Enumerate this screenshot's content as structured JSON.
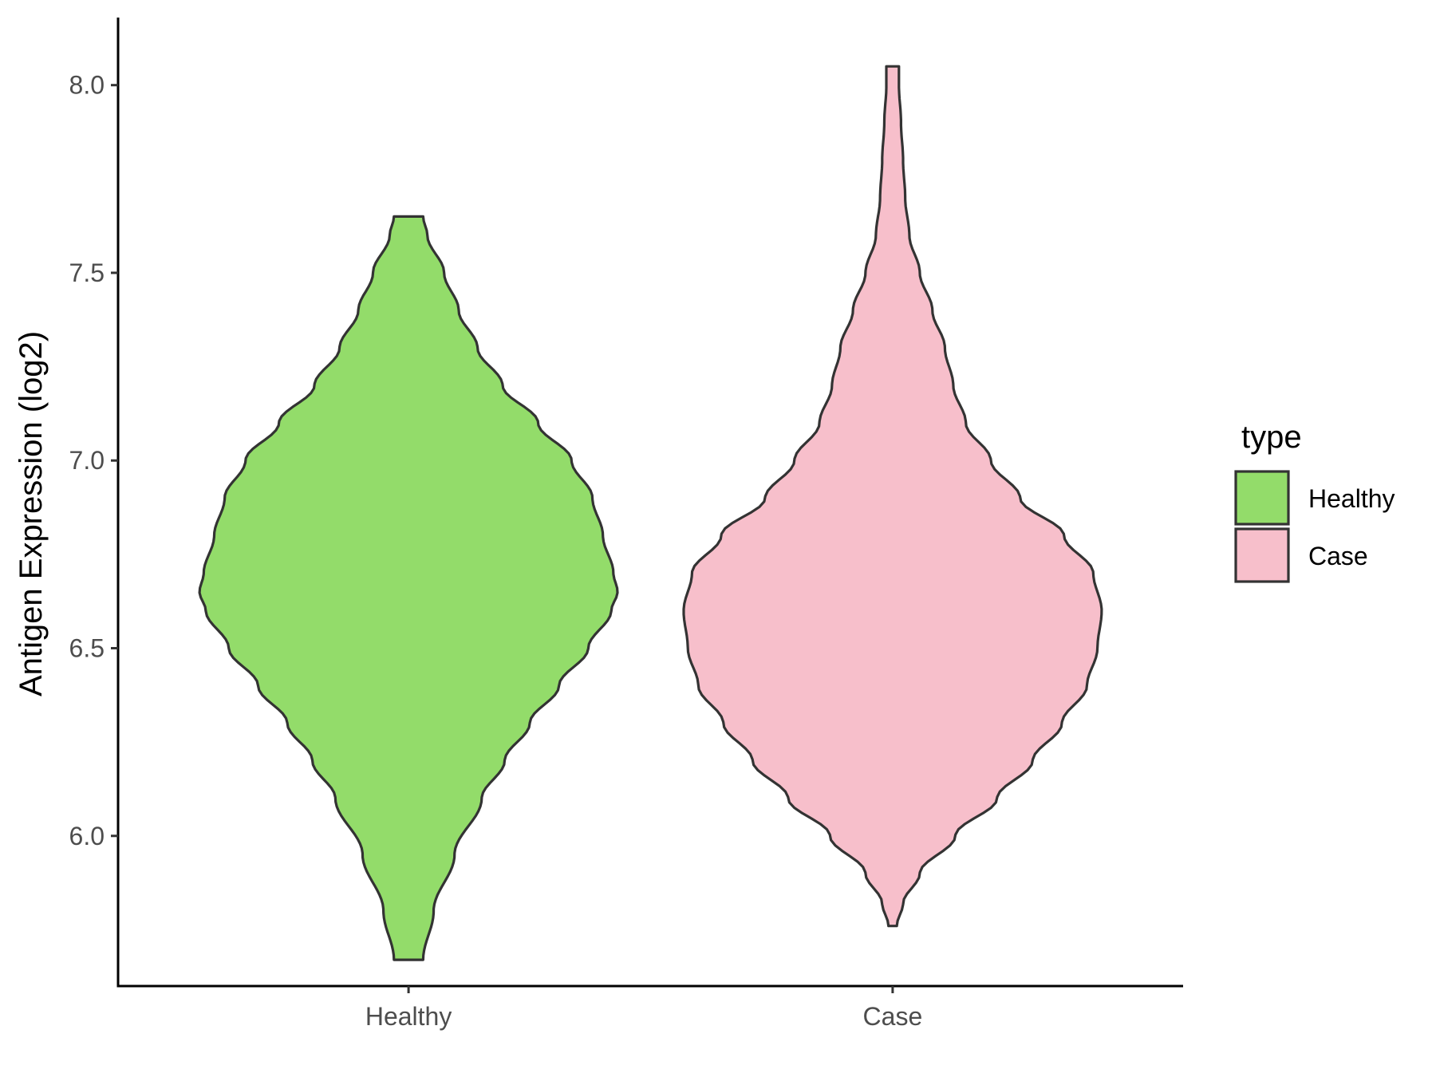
{
  "chart_data": {
    "type": "violin",
    "title": "",
    "xlabel": "",
    "ylabel": "Antigen Expression (log2)",
    "ylim": [
      5.6,
      8.18
    ],
    "yticks": [
      "6.0",
      "6.5",
      "7.0",
      "7.5",
      "8.0"
    ],
    "categories": [
      "Healthy",
      "Case"
    ],
    "grid": false,
    "legend": {
      "title": "type",
      "position": "right",
      "entries": [
        "Healthy",
        "Case"
      ]
    },
    "series": [
      {
        "name": "Healthy",
        "color": "#93dc6a",
        "min": 5.67,
        "max": 7.65,
        "density_profile": [
          [
            5.67,
            0.07
          ],
          [
            5.8,
            0.12
          ],
          [
            5.95,
            0.22
          ],
          [
            6.1,
            0.35
          ],
          [
            6.2,
            0.46
          ],
          [
            6.3,
            0.58
          ],
          [
            6.4,
            0.72
          ],
          [
            6.5,
            0.86
          ],
          [
            6.6,
            0.97
          ],
          [
            6.65,
            1.0
          ],
          [
            6.7,
            0.98
          ],
          [
            6.8,
            0.93
          ],
          [
            6.9,
            0.88
          ],
          [
            7.0,
            0.78
          ],
          [
            7.1,
            0.62
          ],
          [
            7.2,
            0.45
          ],
          [
            7.3,
            0.33
          ],
          [
            7.4,
            0.24
          ],
          [
            7.5,
            0.17
          ],
          [
            7.6,
            0.09
          ],
          [
            7.65,
            0.07
          ]
        ]
      },
      {
        "name": "Case",
        "color": "#f7bfcb",
        "min": 5.76,
        "max": 8.05,
        "density_profile": [
          [
            5.76,
            0.02
          ],
          [
            5.82,
            0.05
          ],
          [
            5.9,
            0.13
          ],
          [
            6.0,
            0.3
          ],
          [
            6.1,
            0.5
          ],
          [
            6.2,
            0.67
          ],
          [
            6.3,
            0.81
          ],
          [
            6.4,
            0.93
          ],
          [
            6.5,
            0.98
          ],
          [
            6.6,
            1.0
          ],
          [
            6.7,
            0.96
          ],
          [
            6.8,
            0.82
          ],
          [
            6.9,
            0.61
          ],
          [
            7.0,
            0.47
          ],
          [
            7.1,
            0.35
          ],
          [
            7.2,
            0.29
          ],
          [
            7.3,
            0.25
          ],
          [
            7.4,
            0.19
          ],
          [
            7.5,
            0.13
          ],
          [
            7.6,
            0.08
          ],
          [
            7.7,
            0.06
          ],
          [
            7.8,
            0.05
          ],
          [
            7.9,
            0.04
          ],
          [
            8.0,
            0.03
          ],
          [
            8.05,
            0.03
          ]
        ]
      }
    ]
  }
}
